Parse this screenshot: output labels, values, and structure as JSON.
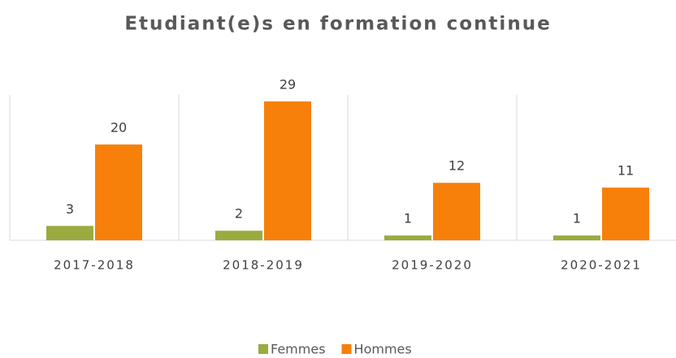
{
  "chart_data": {
    "type": "bar",
    "title": "Etudiant(e)s en formation continue",
    "categories": [
      "2017-2018",
      "2018-2019",
      "2019-2020",
      "2020-2021"
    ],
    "series": [
      {
        "name": "Femmes",
        "color": "#9bab3f",
        "values": [
          3,
          2,
          1,
          1
        ]
      },
      {
        "name": "Hommes",
        "color": "#f7800a",
        "values": [
          20,
          29,
          12,
          11
        ]
      }
    ],
    "ylim": [
      0,
      30
    ],
    "legend": "bottom"
  }
}
